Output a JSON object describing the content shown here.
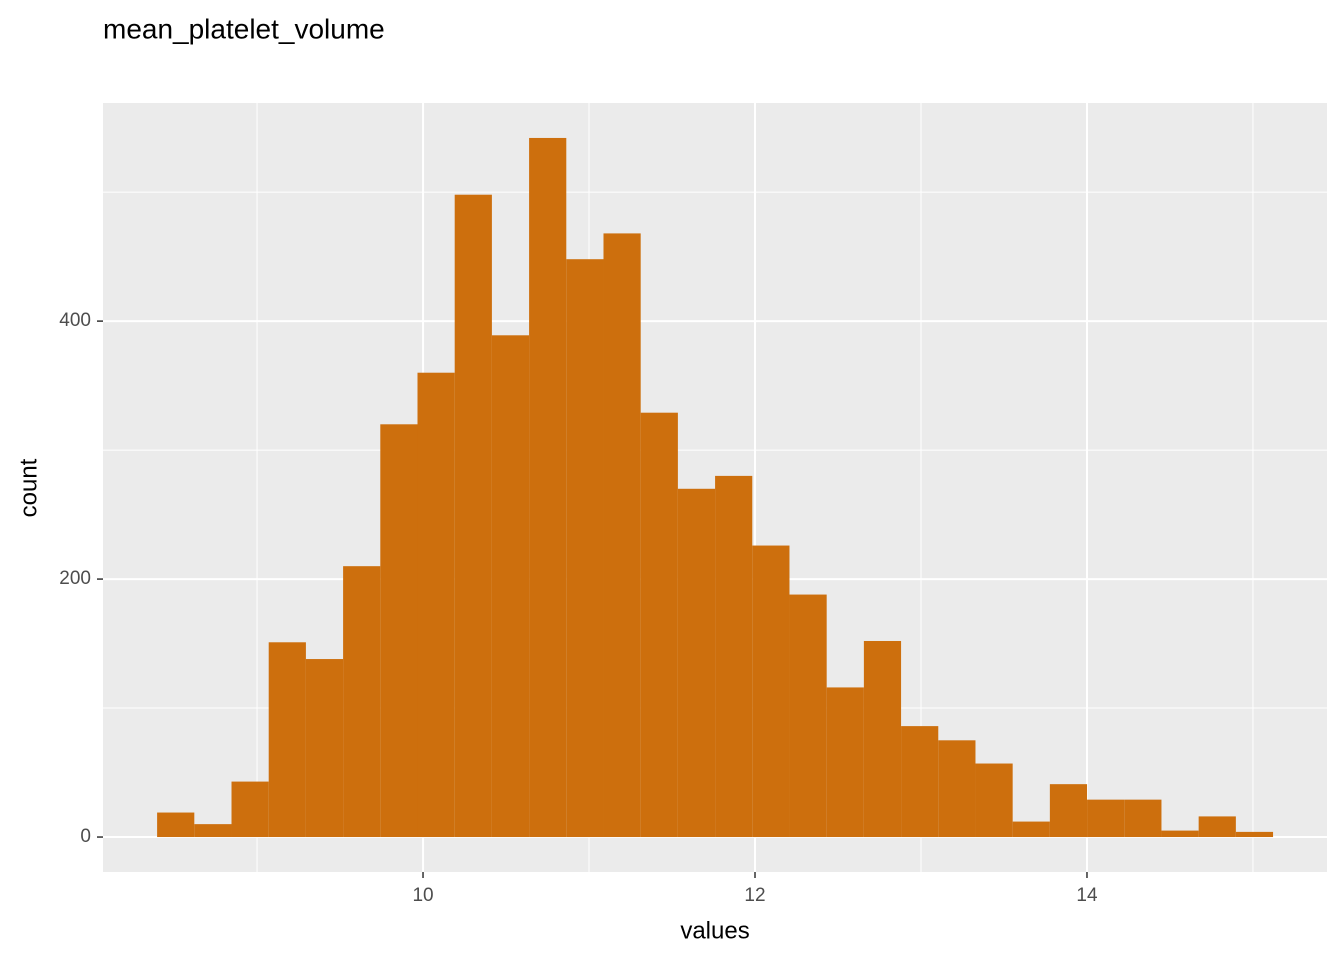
{
  "chart_data": {
    "type": "histogram",
    "title": "mean_platelet_volume",
    "x_label": "values",
    "y_label": "count",
    "color": "#cd6f0d",
    "panel_color": "#ebebeb",
    "grid_color": "#ffffff",
    "grid": true,
    "bins": [
      8.398,
      8.6221,
      8.8462,
      9.0703,
      9.2944,
      9.5185,
      9.7426,
      9.9667,
      10.1908,
      10.4149,
      10.639,
      10.8631,
      11.0872,
      11.3113,
      11.5354,
      11.7595,
      11.9836,
      12.2077,
      12.4318,
      12.6559,
      12.88,
      13.1041,
      13.3282,
      13.5523,
      13.7764,
      14.0005,
      14.2246,
      14.4487,
      14.6728,
      14.8969,
      15.121
    ],
    "counts": [
      19,
      10,
      43,
      151,
      138,
      210,
      320,
      360,
      498,
      389,
      542,
      448,
      468,
      329,
      270,
      280,
      226,
      188,
      116,
      152,
      86,
      75,
      57,
      12,
      41,
      29,
      29,
      5,
      16,
      4
    ],
    "xlim": [
      8.072,
      15.446
    ],
    "ylim": [
      -27.1,
      569.1
    ],
    "xticks": [
      10,
      12,
      14
    ],
    "yticks": [
      0,
      200,
      400
    ],
    "x_minor_grid": [
      9,
      11,
      13,
      15
    ],
    "y_minor_grid": [
      100,
      300,
      500
    ]
  }
}
